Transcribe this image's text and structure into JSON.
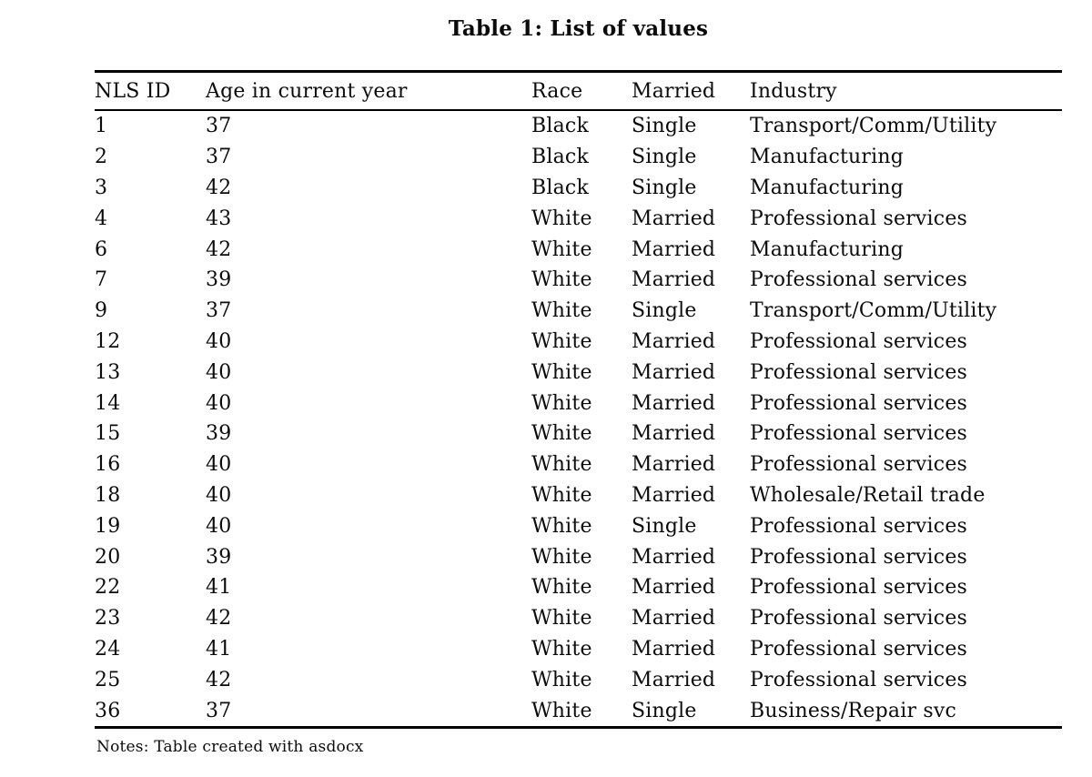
{
  "page": {
    "title": "Table 1: List of values",
    "notes": "Notes: Table created with asdocx"
  },
  "table": {
    "columns": [
      "NLS ID",
      "Age in current year",
      "Race",
      "Married",
      "Industry"
    ],
    "rows": [
      [
        "1",
        "37",
        "Black",
        "Single",
        "Transport/Comm/Utility"
      ],
      [
        "2",
        "37",
        "Black",
        "Single",
        "Manufacturing"
      ],
      [
        "3",
        "42",
        "Black",
        "Single",
        "Manufacturing"
      ],
      [
        "4",
        "43",
        "White",
        "Married",
        "Professional services"
      ],
      [
        "6",
        "42",
        "White",
        "Married",
        "Manufacturing"
      ],
      [
        "7",
        "39",
        "White",
        "Married",
        "Professional services"
      ],
      [
        "9",
        "37",
        "White",
        "Single",
        "Transport/Comm/Utility"
      ],
      [
        "12",
        "40",
        "White",
        "Married",
        "Professional services"
      ],
      [
        "13",
        "40",
        "White",
        "Married",
        "Professional services"
      ],
      [
        "14",
        "40",
        "White",
        "Married",
        "Professional services"
      ],
      [
        "15",
        "39",
        "White",
        "Married",
        "Professional services"
      ],
      [
        "16",
        "40",
        "White",
        "Married",
        "Professional services"
      ],
      [
        "18",
        "40",
        "White",
        "Married",
        "Wholesale/Retail trade"
      ],
      [
        "19",
        "40",
        "White",
        "Single",
        "Professional services"
      ],
      [
        "20",
        "39",
        "White",
        "Married",
        "Professional services"
      ],
      [
        "22",
        "41",
        "White",
        "Married",
        "Professional services"
      ],
      [
        "23",
        "42",
        "White",
        "Married",
        "Professional services"
      ],
      [
        "24",
        "41",
        "White",
        "Married",
        "Professional services"
      ],
      [
        "25",
        "42",
        "White",
        "Married",
        "Professional services"
      ],
      [
        "36",
        "37",
        "White",
        "Single",
        "Business/Repair svc"
      ]
    ]
  },
  "colors": {
    "text": "#0b0b0b",
    "rule": "#000000",
    "background": "#ffffff"
  }
}
